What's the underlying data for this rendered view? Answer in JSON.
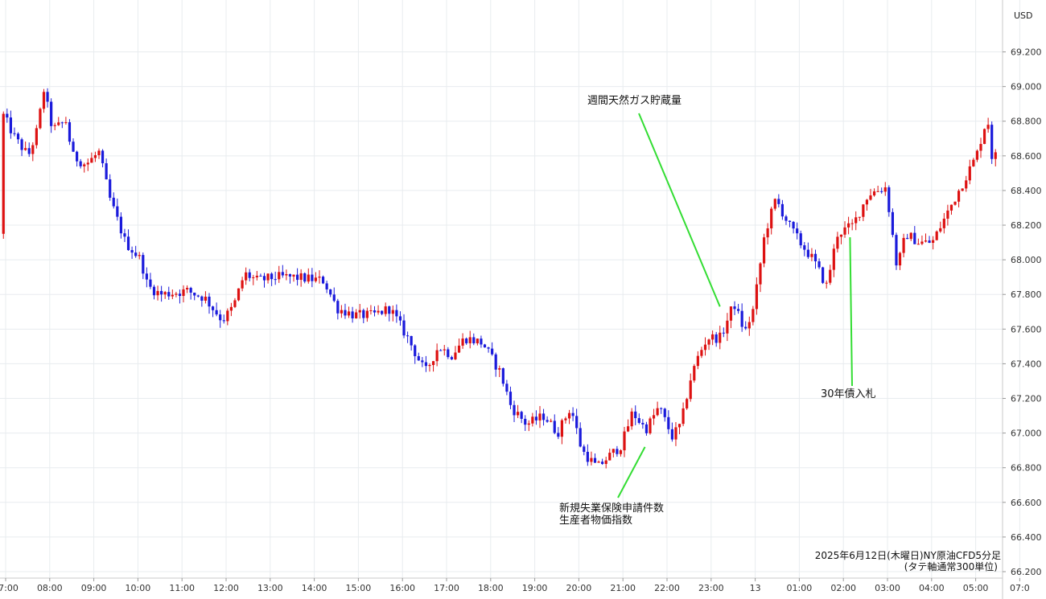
{
  "chart_data": {
    "type": "candlestick",
    "currency": "USD",
    "caption_line1": "2025年6月12日(木曜日)NY原油CFD5分足",
    "caption_line2": "(タテ軸通常300単位)",
    "ylim": [
      66.2,
      69.3
    ],
    "y_ticks": [
      "66.200",
      "66.400",
      "66.600",
      "66.800",
      "67.000",
      "67.200",
      "67.400",
      "67.600",
      "67.800",
      "68.000",
      "68.200",
      "68.400",
      "68.600",
      "68.800",
      "69.000",
      "69.200"
    ],
    "x_ticks": [
      "07:00",
      "08:00",
      "09:00",
      "10:00",
      "11:00",
      "12:00",
      "13:00",
      "14:00",
      "15:00",
      "16:00",
      "17:00",
      "18:00",
      "19:00",
      "20:00",
      "21:00",
      "22:00",
      "23:00",
      "13",
      "01:00",
      "02:00",
      "03:00",
      "04:00",
      "05:00",
      "07:0"
    ],
    "up_color": "#dd1111",
    "down_color": "#1a1adb",
    "annotation_color": "#33dd33",
    "annotations": [
      {
        "text": "週間天然ガス貯蔵量",
        "x_hour": 23.2,
        "y": 67.73
      },
      {
        "text": "30年債入札",
        "x_hour": 26.15,
        "y": 68.13
      },
      {
        "text": "新規失業保険申請件数",
        "text2": "生産者物価指数",
        "x_hour": 21.5,
        "y": 66.92
      }
    ],
    "anchors": [
      [
        6.95,
        68.15
      ],
      [
        7.0,
        68.85
      ],
      [
        7.3,
        68.7
      ],
      [
        7.6,
        68.6
      ],
      [
        7.8,
        68.75
      ],
      [
        7.95,
        68.98
      ],
      [
        8.15,
        68.75
      ],
      [
        8.45,
        68.8
      ],
      [
        8.6,
        68.6
      ],
      [
        8.9,
        68.55
      ],
      [
        9.2,
        68.62
      ],
      [
        9.45,
        68.35
      ],
      [
        9.8,
        68.1
      ],
      [
        10.15,
        68.0
      ],
      [
        10.3,
        67.85
      ],
      [
        10.6,
        67.8
      ],
      [
        11.2,
        67.82
      ],
      [
        11.6,
        67.78
      ],
      [
        12.0,
        67.65
      ],
      [
        12.25,
        67.73
      ],
      [
        12.5,
        67.92
      ],
      [
        12.8,
        67.88
      ],
      [
        13.2,
        67.9
      ],
      [
        13.6,
        67.9
      ],
      [
        14.3,
        67.88
      ],
      [
        14.6,
        67.72
      ],
      [
        15.0,
        67.68
      ],
      [
        15.4,
        67.68
      ],
      [
        15.8,
        67.72
      ],
      [
        16.2,
        67.55
      ],
      [
        16.6,
        67.35
      ],
      [
        16.9,
        67.5
      ],
      [
        17.2,
        67.45
      ],
      [
        17.5,
        67.55
      ],
      [
        17.9,
        67.52
      ],
      [
        18.3,
        67.35
      ],
      [
        18.55,
        67.15
      ],
      [
        18.9,
        67.05
      ],
      [
        19.3,
        67.1
      ],
      [
        19.6,
        67.0
      ],
      [
        19.9,
        67.15
      ],
      [
        20.15,
        66.9
      ],
      [
        20.5,
        66.8
      ],
      [
        20.7,
        66.85
      ],
      [
        21.05,
        66.93
      ],
      [
        21.3,
        67.12
      ],
      [
        21.6,
        67.02
      ],
      [
        21.9,
        67.15
      ],
      [
        22.2,
        66.98
      ],
      [
        22.4,
        67.05
      ],
      [
        22.6,
        67.3
      ],
      [
        22.8,
        67.45
      ],
      [
        23.0,
        67.55
      ],
      [
        23.3,
        67.55
      ],
      [
        23.6,
        67.75
      ],
      [
        23.85,
        67.58
      ],
      [
        24.05,
        67.72
      ],
      [
        24.3,
        68.15
      ],
      [
        24.55,
        68.35
      ],
      [
        24.85,
        68.2
      ],
      [
        25.1,
        68.1
      ],
      [
        25.4,
        68.0
      ],
      [
        25.7,
        67.85
      ],
      [
        25.95,
        68.15
      ],
      [
        26.3,
        68.2
      ],
      [
        26.65,
        68.38
      ],
      [
        27.05,
        68.42
      ],
      [
        27.3,
        67.95
      ],
      [
        27.5,
        68.15
      ],
      [
        27.8,
        68.1
      ],
      [
        28.1,
        68.1
      ],
      [
        28.4,
        68.25
      ],
      [
        28.8,
        68.45
      ],
      [
        29.1,
        68.6
      ],
      [
        29.35,
        68.83
      ],
      [
        29.45,
        68.6
      ]
    ]
  }
}
